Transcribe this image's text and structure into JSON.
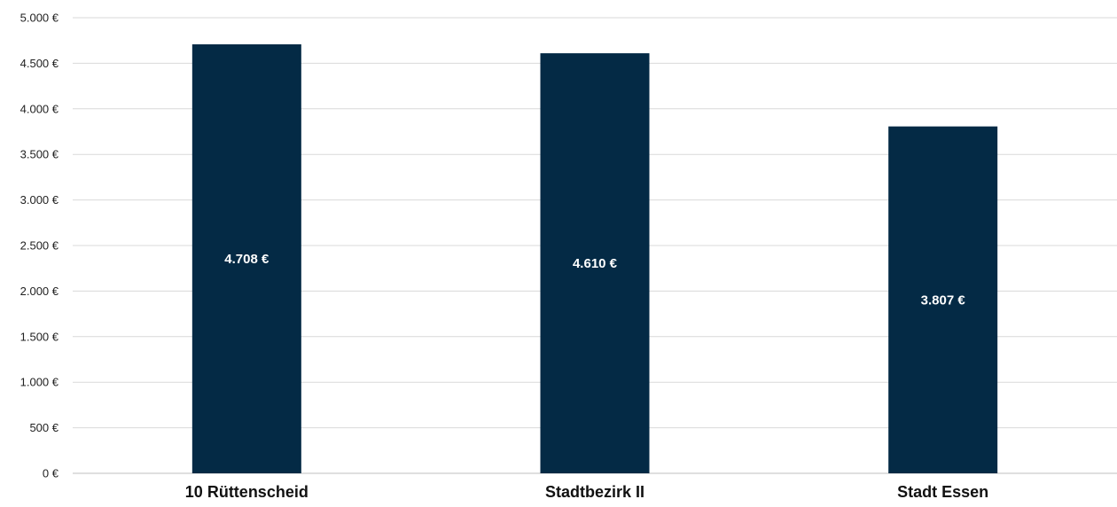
{
  "chart_data": {
    "type": "bar",
    "categories": [
      "10 Rüttenscheid",
      "Stadtbezirk II",
      "Stadt Essen"
    ],
    "values": [
      4708,
      4610,
      3807
    ],
    "data_labels": [
      "4.708 €",
      "4.610 €",
      "3.807 €"
    ],
    "y_ticks": [
      0,
      500,
      1000,
      1500,
      2000,
      2500,
      3000,
      3500,
      4000,
      4500,
      5000
    ],
    "y_tick_labels": [
      "0 €",
      "500 €",
      "1.000 €",
      "1.500 €",
      "2.000 €",
      "2.500 €",
      "3.000 €",
      "3.500 €",
      "4.000 €",
      "4.500 €",
      "5.000 €"
    ],
    "ylim": [
      0,
      5000
    ],
    "title": "",
    "xlabel": "",
    "ylabel": "",
    "grid": true,
    "legend": "none",
    "bar_color": "#042a45",
    "label_color": "#ffffff"
  }
}
